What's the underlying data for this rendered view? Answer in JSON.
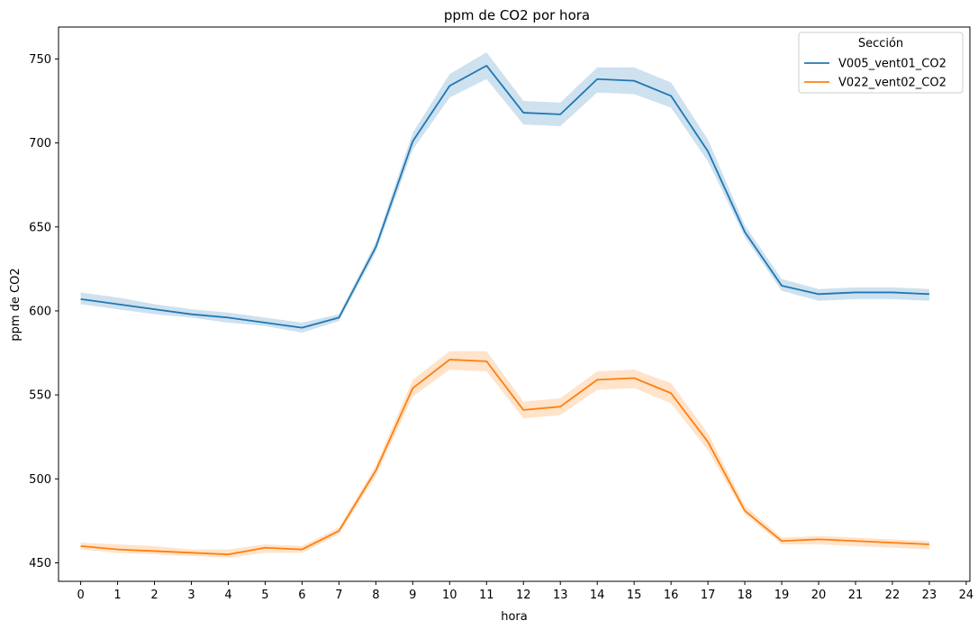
{
  "chart_data": {
    "type": "line",
    "title": "ppm de CO2 por hora",
    "xlabel": "hora",
    "ylabel": "ppm de CO2",
    "xlim": [
      -0.6,
      24.1
    ],
    "ylim": [
      439,
      769
    ],
    "x_ticks": [
      0,
      1,
      2,
      3,
      4,
      5,
      6,
      7,
      8,
      9,
      10,
      11,
      12,
      13,
      14,
      15,
      16,
      17,
      18,
      19,
      20,
      21,
      22,
      23,
      24
    ],
    "y_ticks": [
      450,
      500,
      550,
      600,
      650,
      700,
      750
    ],
    "grid": false,
    "legend": {
      "title": "Sección",
      "position": "top-right"
    },
    "x": [
      0,
      1,
      2,
      3,
      4,
      5,
      6,
      7,
      8,
      9,
      10,
      11,
      12,
      13,
      14,
      15,
      16,
      17,
      18,
      19,
      20,
      21,
      22,
      23
    ],
    "series": [
      {
        "name": "V005_vent01_CO2",
        "color": "#1f77b4",
        "values": [
          607,
          604,
          601,
          598,
          596,
          593,
          590,
          596,
          638,
          701,
          734,
          746,
          718,
          717,
          738,
          737,
          728,
          695,
          647,
          615,
          610,
          611,
          611,
          610
        ],
        "ci_lower": [
          604,
          601,
          598,
          596,
          593,
          591,
          587,
          594,
          635,
          696,
          727,
          738,
          711,
          710,
          730,
          729,
          721,
          689,
          644,
          612,
          606,
          607,
          607,
          606
        ],
        "ci_upper": [
          611,
          608,
          604,
          601,
          599,
          596,
          593,
          598,
          641,
          706,
          741,
          754,
          725,
          724,
          745,
          745,
          736,
          702,
          651,
          619,
          613,
          614,
          614,
          613
        ]
      },
      {
        "name": "V022_vent02_CO2",
        "color": "#ff7f0e",
        "values": [
          460,
          458,
          457,
          456,
          455,
          459,
          458,
          469,
          505,
          554,
          571,
          570,
          541,
          543,
          559,
          560,
          551,
          522,
          481,
          463,
          464,
          463,
          462,
          461
        ],
        "ci_lower": [
          458,
          456,
          455,
          454,
          453,
          456,
          456,
          467,
          502,
          549,
          565,
          564,
          536,
          538,
          553,
          554,
          545,
          517,
          479,
          461,
          461,
          460,
          459,
          458
        ],
        "ci_upper": [
          462,
          461,
          460,
          458,
          458,
          461,
          460,
          471,
          508,
          559,
          576,
          576,
          546,
          548,
          564,
          565,
          557,
          527,
          484,
          465,
          466,
          465,
          464,
          463
        ]
      }
    ]
  }
}
